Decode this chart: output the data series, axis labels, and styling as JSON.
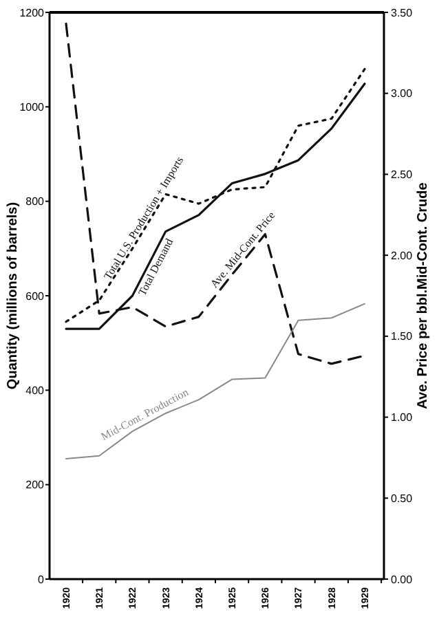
{
  "chart_data": {
    "type": "line",
    "ylabel": "Quantity (millions of barrels)",
    "y2label": "Ave. Price per bbl.Mid-Cont. Crude",
    "categories": [
      "1920",
      "1921",
      "1922",
      "1923",
      "1924",
      "1925",
      "1926",
      "1927",
      "1928",
      "1929"
    ],
    "ylim": [
      0,
      1200
    ],
    "yticks": [
      0,
      200,
      400,
      600,
      800,
      1000,
      1200
    ],
    "y2lim": [
      0,
      3.5
    ],
    "y2ticks": [
      {
        "value": 0,
        "label": "0.00"
      },
      {
        "value": 0.5,
        "label": "0.50"
      },
      {
        "value": 1,
        "label": "1.00"
      },
      {
        "value": 1.5,
        "label": "1.50"
      },
      {
        "value": 2,
        "label": "2.00"
      },
      {
        "value": 2.5,
        "label": "2.50"
      },
      {
        "value": 3,
        "label": "3.00"
      },
      {
        "value": 3.5,
        "label": "3.50"
      }
    ],
    "series": [
      {
        "name": "Total U.S. Production + Imports",
        "color": "#111111",
        "line_style": "dotted",
        "values": [
          545,
          590,
          700,
          815,
          795,
          825,
          830,
          960,
          975,
          1080
        ]
      },
      {
        "name": "Total Demand",
        "color": "#111111",
        "line_style": "solid",
        "values": [
          530,
          530,
          600,
          736,
          771,
          838,
          858,
          887,
          954,
          1049
        ]
      },
      {
        "name": "Ave. Mid-Cont. Price",
        "color": "#111111",
        "line_style": "dashed",
        "axis": "y2",
        "values": [
          3.43,
          1.64,
          1.68,
          1.56,
          1.62,
          1.88,
          2.13,
          1.39,
          1.33,
          1.38
        ]
      },
      {
        "name": "Mid-Cont. Production",
        "color": "#888888",
        "line_style": "solid",
        "values": [
          255,
          261,
          313,
          351,
          380,
          423,
          426,
          548,
          553,
          583
        ]
      }
    ],
    "grid": false,
    "marker": "none"
  }
}
